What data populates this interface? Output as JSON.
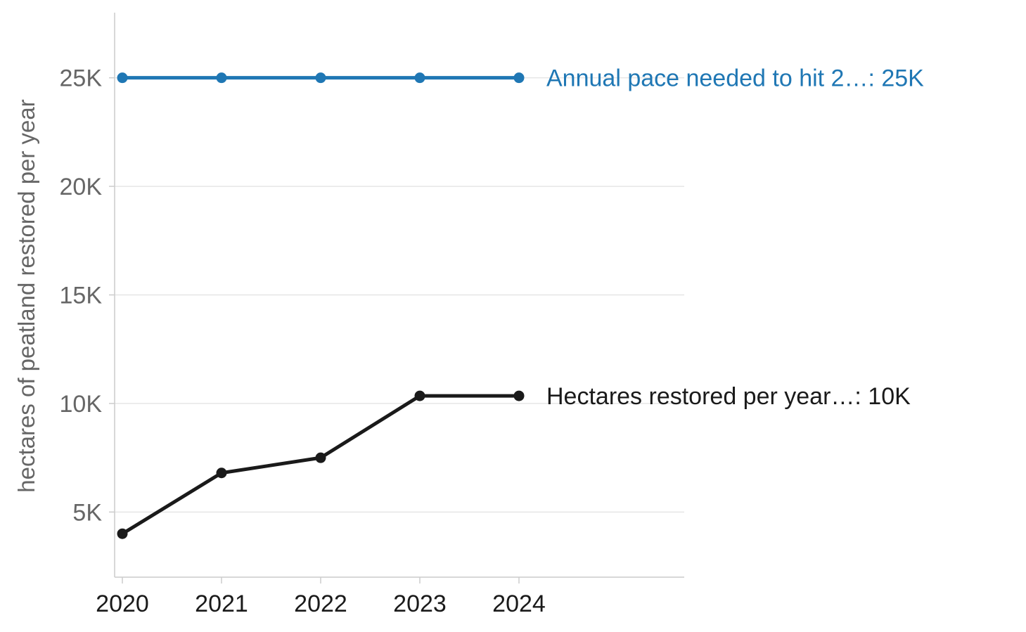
{
  "chart_data": {
    "type": "line",
    "title": "",
    "xlabel": "",
    "ylabel": "hectares of peatland restored per year",
    "x": [
      2020,
      2021,
      2022,
      2023,
      2024
    ],
    "x_tick_labels": [
      "2020",
      "2021",
      "2022",
      "2023",
      "2024"
    ],
    "y_ticks": [
      5000,
      10000,
      15000,
      20000,
      25000
    ],
    "y_tick_labels": [
      "5K",
      "10K",
      "15K",
      "20K",
      "25K"
    ],
    "ylim": [
      2000,
      28000
    ],
    "grid": "horizontal",
    "series": [
      {
        "name": "Annual pace needed to hit 2…",
        "values": [
          25000,
          25000,
          25000,
          25000,
          25000
        ],
        "color": "#1f77b4",
        "end_label": "Annual pace needed to hit 2…: 25K"
      },
      {
        "name": "Hectares restored per year…",
        "values": [
          4000,
          6800,
          7500,
          10350,
          10350
        ],
        "color": "#1a1a1a",
        "end_label": "Hectares restored per year…: 10K"
      }
    ]
  }
}
